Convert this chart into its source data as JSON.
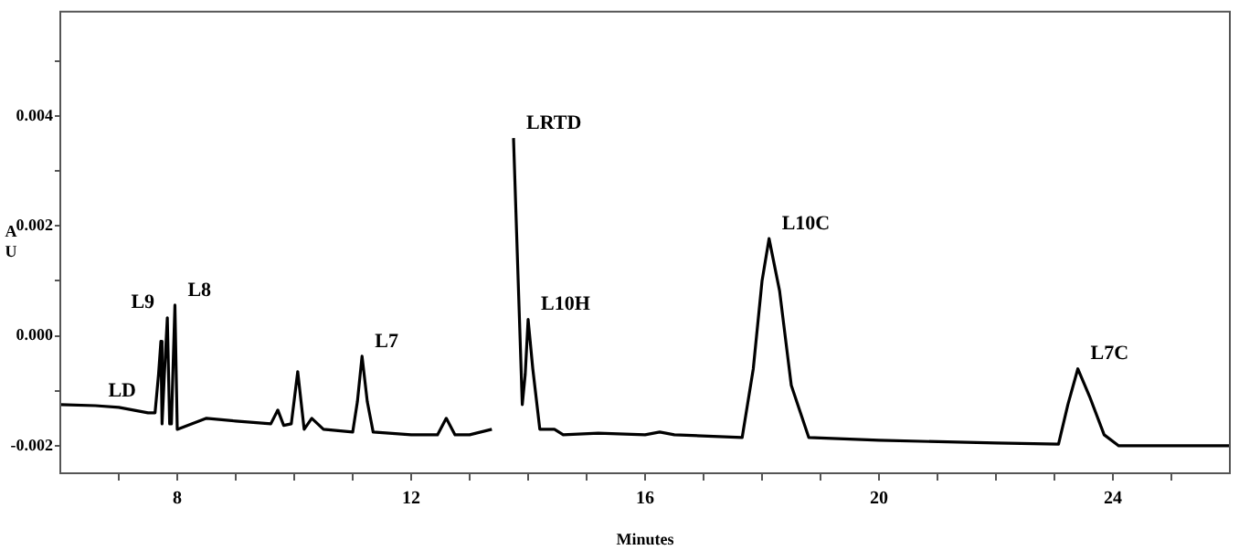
{
  "chart_data": {
    "type": "line",
    "xlabel": "Minutes",
    "ylabel": "AU",
    "x": [
      6,
      6.6,
      7,
      7.5,
      7.62,
      7.68,
      7.72,
      7.74,
      7.78,
      7.83,
      7.87,
      7.9,
      7.93,
      7.96,
      8.0,
      8.5,
      9,
      9.6,
      9.72,
      9.82,
      9.95,
      10.06,
      10.17,
      10.3,
      10.5,
      11.0,
      11.08,
      11.16,
      11.25,
      11.35,
      12.0,
      12.45,
      12.6,
      12.75,
      13.0,
      13.38,
      13.42,
      13.7,
      13.75,
      13.83,
      13.9,
      13.95,
      14.0,
      14.08,
      14.2,
      14.45,
      14.6,
      15.2,
      16,
      16.25,
      16.5,
      17.66,
      17.85,
      18.0,
      18.12,
      18.3,
      18.5,
      18.8,
      20,
      22,
      23.07,
      23.23,
      23.4,
      23.6,
      23.85,
      24.1,
      26
    ],
    "series": [
      {
        "color": "#000000",
        "values": [
          -0.00125,
          -0.00127,
          -0.0013,
          -0.0014,
          -0.0014,
          -0.0007,
          -0.0001,
          -0.0016,
          -0.0007,
          0.00033,
          -0.0016,
          -0.0016,
          -0.0005,
          0.00056,
          -0.0017,
          -0.0015,
          -0.00155,
          -0.0016,
          -0.00135,
          -0.00163,
          -0.0016,
          -0.00065,
          -0.0017,
          -0.0015,
          -0.0017,
          -0.00175,
          -0.0012,
          -0.00037,
          -0.0012,
          -0.00175,
          -0.0018,
          -0.0018,
          -0.0015,
          -0.0018,
          -0.0018,
          -0.0017,
          null,
          null,
          0.0036,
          0.001,
          -0.00125,
          -0.0007,
          0.0003,
          -0.0006,
          -0.0017,
          -0.0017,
          -0.0018,
          -0.00177,
          -0.0018,
          -0.00175,
          -0.0018,
          -0.00185,
          -0.0006,
          0.001,
          0.00177,
          0.00082,
          -0.0009,
          -0.00185,
          -0.0019,
          -0.00195,
          -0.00197,
          -0.00125,
          -0.0006,
          -0.0011,
          -0.0018,
          -0.002,
          -0.002
        ]
      }
    ],
    "xlim": [
      6,
      26
    ],
    "xticks": [
      {
        "value": 7,
        "label": null
      },
      8,
      {
        "value": 9,
        "label": null
      },
      {
        "value": 10,
        "label": null
      },
      {
        "value": 11,
        "label": null
      },
      12,
      {
        "value": 13,
        "label": null
      },
      {
        "value": 14,
        "label": null
      },
      {
        "value": 15,
        "label": null
      },
      16,
      {
        "value": 17,
        "label": null
      },
      {
        "value": 18,
        "label": null
      },
      {
        "value": 19,
        "label": null
      },
      20,
      {
        "value": 21,
        "label": null
      },
      {
        "value": 22,
        "label": null
      },
      {
        "value": 23,
        "label": null
      },
      24,
      {
        "value": 25,
        "label": null
      }
    ],
    "ylim": [
      -0.0025,
      0.0059
    ],
    "yticks": [
      {
        "value": -0.002,
        "label": "-0.002"
      },
      {
        "value": -0.001,
        "label": null
      },
      {
        "value": 0,
        "label": "0.000"
      },
      {
        "value": 0.001,
        "label": null
      },
      {
        "value": 0.002,
        "label": "0.002"
      },
      {
        "value": 0.003,
        "label": null
      },
      {
        "value": 0.004,
        "label": "0.004"
      },
      {
        "value": 0.005,
        "label": null
      }
    ],
    "annotations": [
      {
        "text": "LD",
        "x": 6.6,
        "y": -0.00127
      },
      {
        "text": "L9",
        "x": 7.83,
        "y": 0.00033
      },
      {
        "text": "L8",
        "x": 7.96,
        "y": 0.00056
      },
      {
        "text": "L7",
        "x": 11.16,
        "y": -0.00037
      },
      {
        "text": "LRTD",
        "x": 13.75,
        "y": 0.0036
      },
      {
        "text": "L10H",
        "x": 14.0,
        "y": 0.0003
      },
      {
        "text": "L10C",
        "x": 18.12,
        "y": 0.00177
      },
      {
        "text": "L7C",
        "x": 23.4,
        "y": -0.0006
      }
    ],
    "grid": false,
    "legend": false,
    "marker": "none",
    "line_style": "solid"
  }
}
